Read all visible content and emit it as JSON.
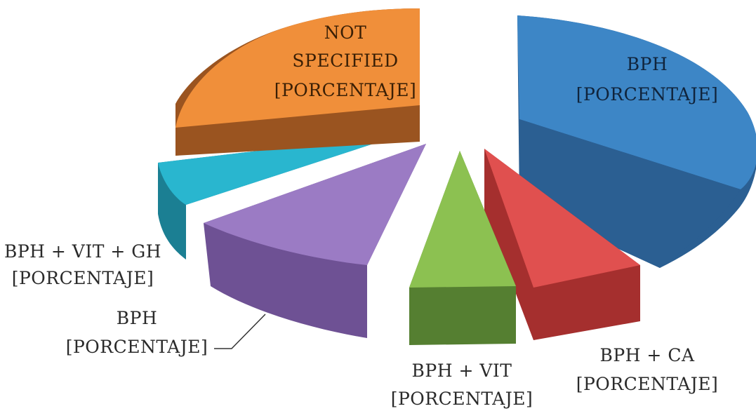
{
  "chart_data": {
    "type": "pie",
    "title": "",
    "slices": [
      {
        "label_lines": [
          "BPH",
          "[PORCENTAJE]"
        ],
        "value": 33,
        "color": "#3d86c6",
        "side": "#2b5f92"
      },
      {
        "label_lines": [
          "BPH + CA",
          "[PORCENTAJE]"
        ],
        "value": 8,
        "color": "#e0504f",
        "side": "#a52f2e"
      },
      {
        "label_lines": [
          "BPH + VIT",
          "[PORCENTAJE]"
        ],
        "value": 7,
        "color": "#8cc151",
        "side": "#557f31"
      },
      {
        "label_lines": [
          "BPH",
          "[PORCENTAJE]"
        ],
        "value": 18,
        "color": "#9b7bc4",
        "side": "#6e5194"
      },
      {
        "label_lines": [
          "BPH + VIT + GH",
          "[PORCENTAJE]"
        ],
        "value": 8,
        "color": "#29b6cf",
        "side": "#1b7f93"
      },
      {
        "label_lines": [
          "NOT",
          "SPECIFIED",
          "[PORCENTAJE]"
        ],
        "value": 26,
        "color": "#f08f3a",
        "side": "#9a5420"
      }
    ]
  }
}
